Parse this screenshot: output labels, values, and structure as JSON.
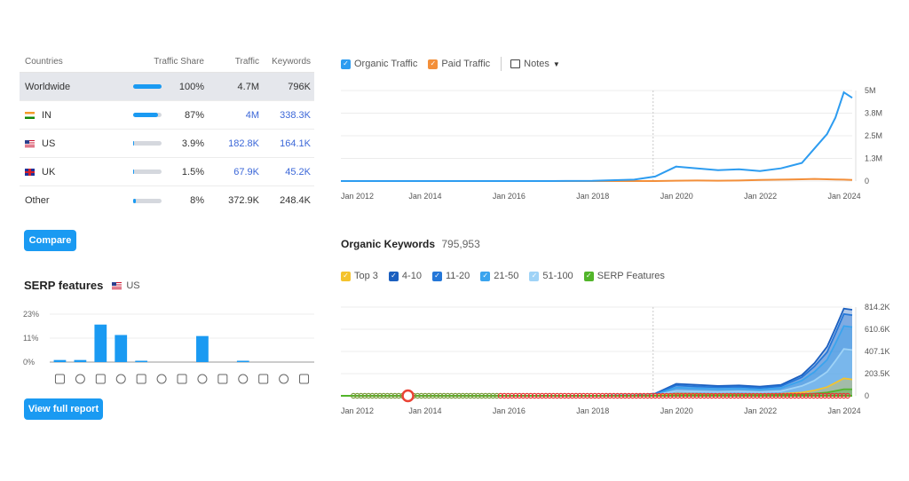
{
  "countries": {
    "headers": {
      "name": "Countries",
      "share": "Traffic Share",
      "traffic": "Traffic",
      "keywords": "Keywords"
    },
    "rows": [
      {
        "name": "Worldwide",
        "flag": "",
        "share": "100%",
        "share_value": 1.0,
        "traffic": "4.7M",
        "keywords": "796K",
        "linked": false,
        "selected": true
      },
      {
        "name": "IN",
        "flag": "india-flag",
        "share": "87%",
        "share_value": 0.87,
        "traffic": "4M",
        "keywords": "338.3K",
        "linked": true,
        "selected": false
      },
      {
        "name": "US",
        "flag": "us-flag",
        "share": "3.9%",
        "share_value": 0.039,
        "traffic": "182.8K",
        "keywords": "164.1K",
        "linked": true,
        "selected": false
      },
      {
        "name": "UK",
        "flag": "uk-flag",
        "share": "1.5%",
        "share_value": 0.015,
        "traffic": "67.9K",
        "keywords": "45.2K",
        "linked": true,
        "selected": false
      },
      {
        "name": "Other",
        "flag": "",
        "share": "8%",
        "share_value": 0.08,
        "traffic": "372.9K",
        "keywords": "248.4K",
        "linked": false,
        "selected": false
      }
    ],
    "compare_label": "Compare"
  },
  "serp": {
    "title": "SERP features",
    "country": "US",
    "y_ticks": [
      "23%",
      "11%",
      "0%"
    ],
    "ylim": [
      0,
      23
    ],
    "values": [
      1,
      1,
      18,
      13,
      0.6,
      0,
      0,
      12.5,
      0,
      0.5,
      0,
      0,
      0
    ],
    "icons": [
      "star-outline-icon",
      "link-icon",
      "star-icon",
      "image-icon",
      "video-circle-icon",
      "play-box-icon",
      "play-circle-icon",
      "chat-bubble-icon",
      "location-pin-icon",
      "graduation-cap-icon",
      "document-icon",
      "briefcase-icon",
      "translate-icon"
    ],
    "view_report_label": "View full report",
    "bar_color": "#1a9af2"
  },
  "traffic_legend": {
    "organic": "Organic Traffic",
    "paid": "Paid Traffic",
    "notes": "Notes",
    "organic_color": "#2d9cf0",
    "paid_color": "#f38f3a"
  },
  "keywords_header": {
    "title": "Organic Keywords",
    "value": "795,953"
  },
  "keywords_legend": [
    {
      "label": "Top 3",
      "color": "#f4c32d"
    },
    {
      "label": "4-10",
      "color": "#1b5fbf"
    },
    {
      "label": "11-20",
      "color": "#2477d8"
    },
    {
      "label": "21-50",
      "color": "#3aa4ee"
    },
    {
      "label": "51-100",
      "color": "#9fd3f7"
    },
    {
      "label": "SERP Features",
      "color": "#52b52a"
    }
  ],
  "chart_data": [
    {
      "type": "line",
      "title": "",
      "x": [
        2012,
        2013,
        2014,
        2015,
        2016,
        2017,
        2018,
        2019,
        2019.5,
        2020,
        2020.5,
        2021,
        2021.5,
        2022,
        2022.5,
        2023,
        2023.3,
        2023.6,
        2023.8,
        2024,
        2024.2
      ],
      "x_ticks": [
        "Jan 2012",
        "Jan 2014",
        "Jan 2016",
        "Jan 2018",
        "Jan 2020",
        "Jan 2022",
        "Jan 2024"
      ],
      "y_ticks": [
        "5M",
        "3.8M",
        "2.5M",
        "1.3M",
        "0"
      ],
      "ylim": [
        0,
        5000000
      ],
      "series": [
        {
          "name": "Organic Traffic",
          "values": [
            0,
            0,
            0,
            0,
            0,
            0,
            10000,
            80000,
            250000,
            800000,
            700000,
            600000,
            650000,
            550000,
            700000,
            1000000,
            1800000,
            2600000,
            3500000,
            4900000,
            4600000
          ]
        },
        {
          "name": "Paid Traffic",
          "values": [
            0,
            0,
            0,
            0,
            0,
            0,
            0,
            0,
            0,
            20000,
            30000,
            20000,
            30000,
            60000,
            80000,
            100000,
            120000,
            100000,
            90000,
            80000,
            60000
          ]
        }
      ],
      "grid": true
    },
    {
      "type": "area",
      "title": "",
      "x": [
        2012,
        2013,
        2014,
        2015,
        2016,
        2017,
        2018,
        2019,
        2019.5,
        2020,
        2020.5,
        2021,
        2021.5,
        2022,
        2022.5,
        2023,
        2023.3,
        2023.6,
        2023.8,
        2024,
        2024.2
      ],
      "x_ticks": [
        "Jan 2012",
        "Jan 2014",
        "Jan 2016",
        "Jan 2018",
        "Jan 2020",
        "Jan 2022",
        "Jan 2024"
      ],
      "y_ticks": [
        "814.2K",
        "610.6K",
        "407.1K",
        "203.5K",
        "0"
      ],
      "ylim": [
        0,
        814200
      ],
      "series": [
        {
          "name": "Top 3",
          "values": [
            0,
            0,
            0,
            0,
            0,
            0,
            0,
            2000,
            5000,
            20000,
            18000,
            15000,
            16000,
            14000,
            18000,
            30000,
            50000,
            80000,
            120000,
            160000,
            150000
          ]
        },
        {
          "name": "4-10",
          "values": [
            0,
            0,
            0,
            0,
            0,
            0,
            0,
            5000,
            20000,
            110000,
            100000,
            90000,
            95000,
            85000,
            100000,
            190000,
            300000,
            450000,
            620000,
            800000,
            790000
          ]
        },
        {
          "name": "11-20",
          "values": [
            0,
            0,
            0,
            0,
            0,
            0,
            0,
            4000,
            16000,
            95000,
            85000,
            78000,
            82000,
            72000,
            88000,
            170000,
            270000,
            400000,
            570000,
            750000,
            740000
          ]
        },
        {
          "name": "21-50",
          "values": [
            0,
            0,
            0,
            0,
            0,
            0,
            0,
            3000,
            12000,
            75000,
            68000,
            62000,
            66000,
            58000,
            70000,
            140000,
            220000,
            330000,
            480000,
            640000,
            630000
          ]
        },
        {
          "name": "51-100",
          "values": [
            0,
            0,
            0,
            0,
            0,
            0,
            0,
            2000,
            8000,
            45000,
            40000,
            36000,
            40000,
            34000,
            42000,
            90000,
            140000,
            220000,
            320000,
            430000,
            420000
          ]
        },
        {
          "name": "SERP Features",
          "values": [
            0,
            0,
            0,
            0,
            0,
            0,
            0,
            0,
            0,
            5000,
            6000,
            6000,
            7000,
            7000,
            9000,
            14000,
            20000,
            30000,
            45000,
            60000,
            60000
          ]
        }
      ],
      "grid": true
    }
  ]
}
